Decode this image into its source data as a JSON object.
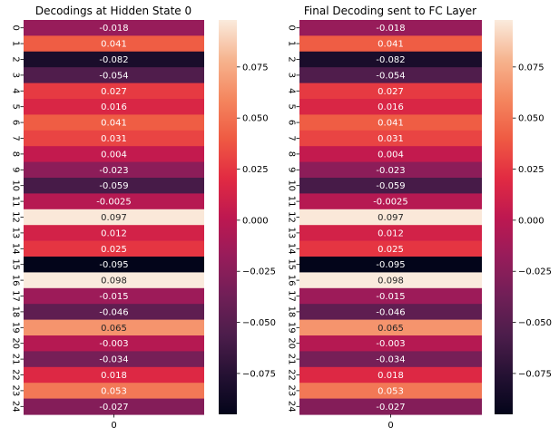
{
  "chart_data": [
    {
      "type": "heatmap",
      "title": "Decodings at Hidden State 0",
      "x_tick_labels": [
        "0"
      ],
      "y_tick_labels": [
        "0",
        "1",
        "2",
        "3",
        "4",
        "5",
        "6",
        "7",
        "8",
        "9",
        "10",
        "11",
        "12",
        "13",
        "14",
        "15",
        "16",
        "17",
        "18",
        "19",
        "20",
        "21",
        "22",
        "23",
        "24"
      ],
      "values": [
        -0.018,
        0.041,
        -0.082,
        -0.054,
        0.027,
        0.016,
        0.041,
        0.031,
        0.004,
        -0.023,
        -0.059,
        -0.0025,
        0.097,
        0.012,
        0.025,
        -0.095,
        0.098,
        -0.015,
        -0.046,
        0.065,
        -0.003,
        -0.034,
        0.018,
        0.053,
        -0.027
      ],
      "annotations": [
        "-0.018",
        "0.041",
        "-0.082",
        "-0.054",
        "0.027",
        "0.016",
        "0.041",
        "0.031",
        "0.004",
        "-0.023",
        "-0.059",
        "-0.0025",
        "0.097",
        "0.012",
        "0.025",
        "-0.095",
        "0.098",
        "-0.015",
        "-0.046",
        "0.065",
        "-0.003",
        "-0.034",
        "0.018",
        "0.053",
        "-0.027"
      ],
      "colorbar": {
        "vmin": -0.095,
        "vmax": 0.098,
        "tick_values": [
          -0.075,
          -0.05,
          -0.025,
          0.0,
          0.025,
          0.05,
          0.075
        ],
        "tick_labels": [
          "−0.075",
          "−0.050",
          "−0.025",
          "0.000",
          "0.025",
          "0.050",
          "0.075"
        ]
      },
      "colormap": "rocket"
    },
    {
      "type": "heatmap",
      "title": "Final Decoding sent to FC Layer",
      "x_tick_labels": [
        "0"
      ],
      "y_tick_labels": [
        "0",
        "1",
        "2",
        "3",
        "4",
        "5",
        "6",
        "7",
        "8",
        "9",
        "10",
        "11",
        "12",
        "13",
        "14",
        "15",
        "16",
        "17",
        "18",
        "19",
        "20",
        "21",
        "22",
        "23",
        "24"
      ],
      "values": [
        -0.018,
        0.041,
        -0.082,
        -0.054,
        0.027,
        0.016,
        0.041,
        0.031,
        0.004,
        -0.023,
        -0.059,
        -0.0025,
        0.097,
        0.012,
        0.025,
        -0.095,
        0.098,
        -0.015,
        -0.046,
        0.065,
        -0.003,
        -0.034,
        0.018,
        0.053,
        -0.027
      ],
      "annotations": [
        "-0.018",
        "0.041",
        "-0.082",
        "-0.054",
        "0.027",
        "0.016",
        "0.041",
        "0.031",
        "0.004",
        "-0.023",
        "-0.059",
        "-0.0025",
        "0.097",
        "0.012",
        "0.025",
        "-0.095",
        "0.098",
        "-0.015",
        "-0.046",
        "0.065",
        "-0.003",
        "-0.034",
        "0.018",
        "0.053",
        "-0.027"
      ],
      "colorbar": {
        "vmin": -0.095,
        "vmax": 0.098,
        "tick_values": [
          -0.075,
          -0.05,
          -0.025,
          0.0,
          0.025,
          0.05,
          0.075
        ],
        "tick_labels": [
          "−0.075",
          "−0.050",
          "−0.025",
          "0.000",
          "0.025",
          "0.050",
          "0.075"
        ]
      },
      "colormap": "rocket"
    }
  ]
}
